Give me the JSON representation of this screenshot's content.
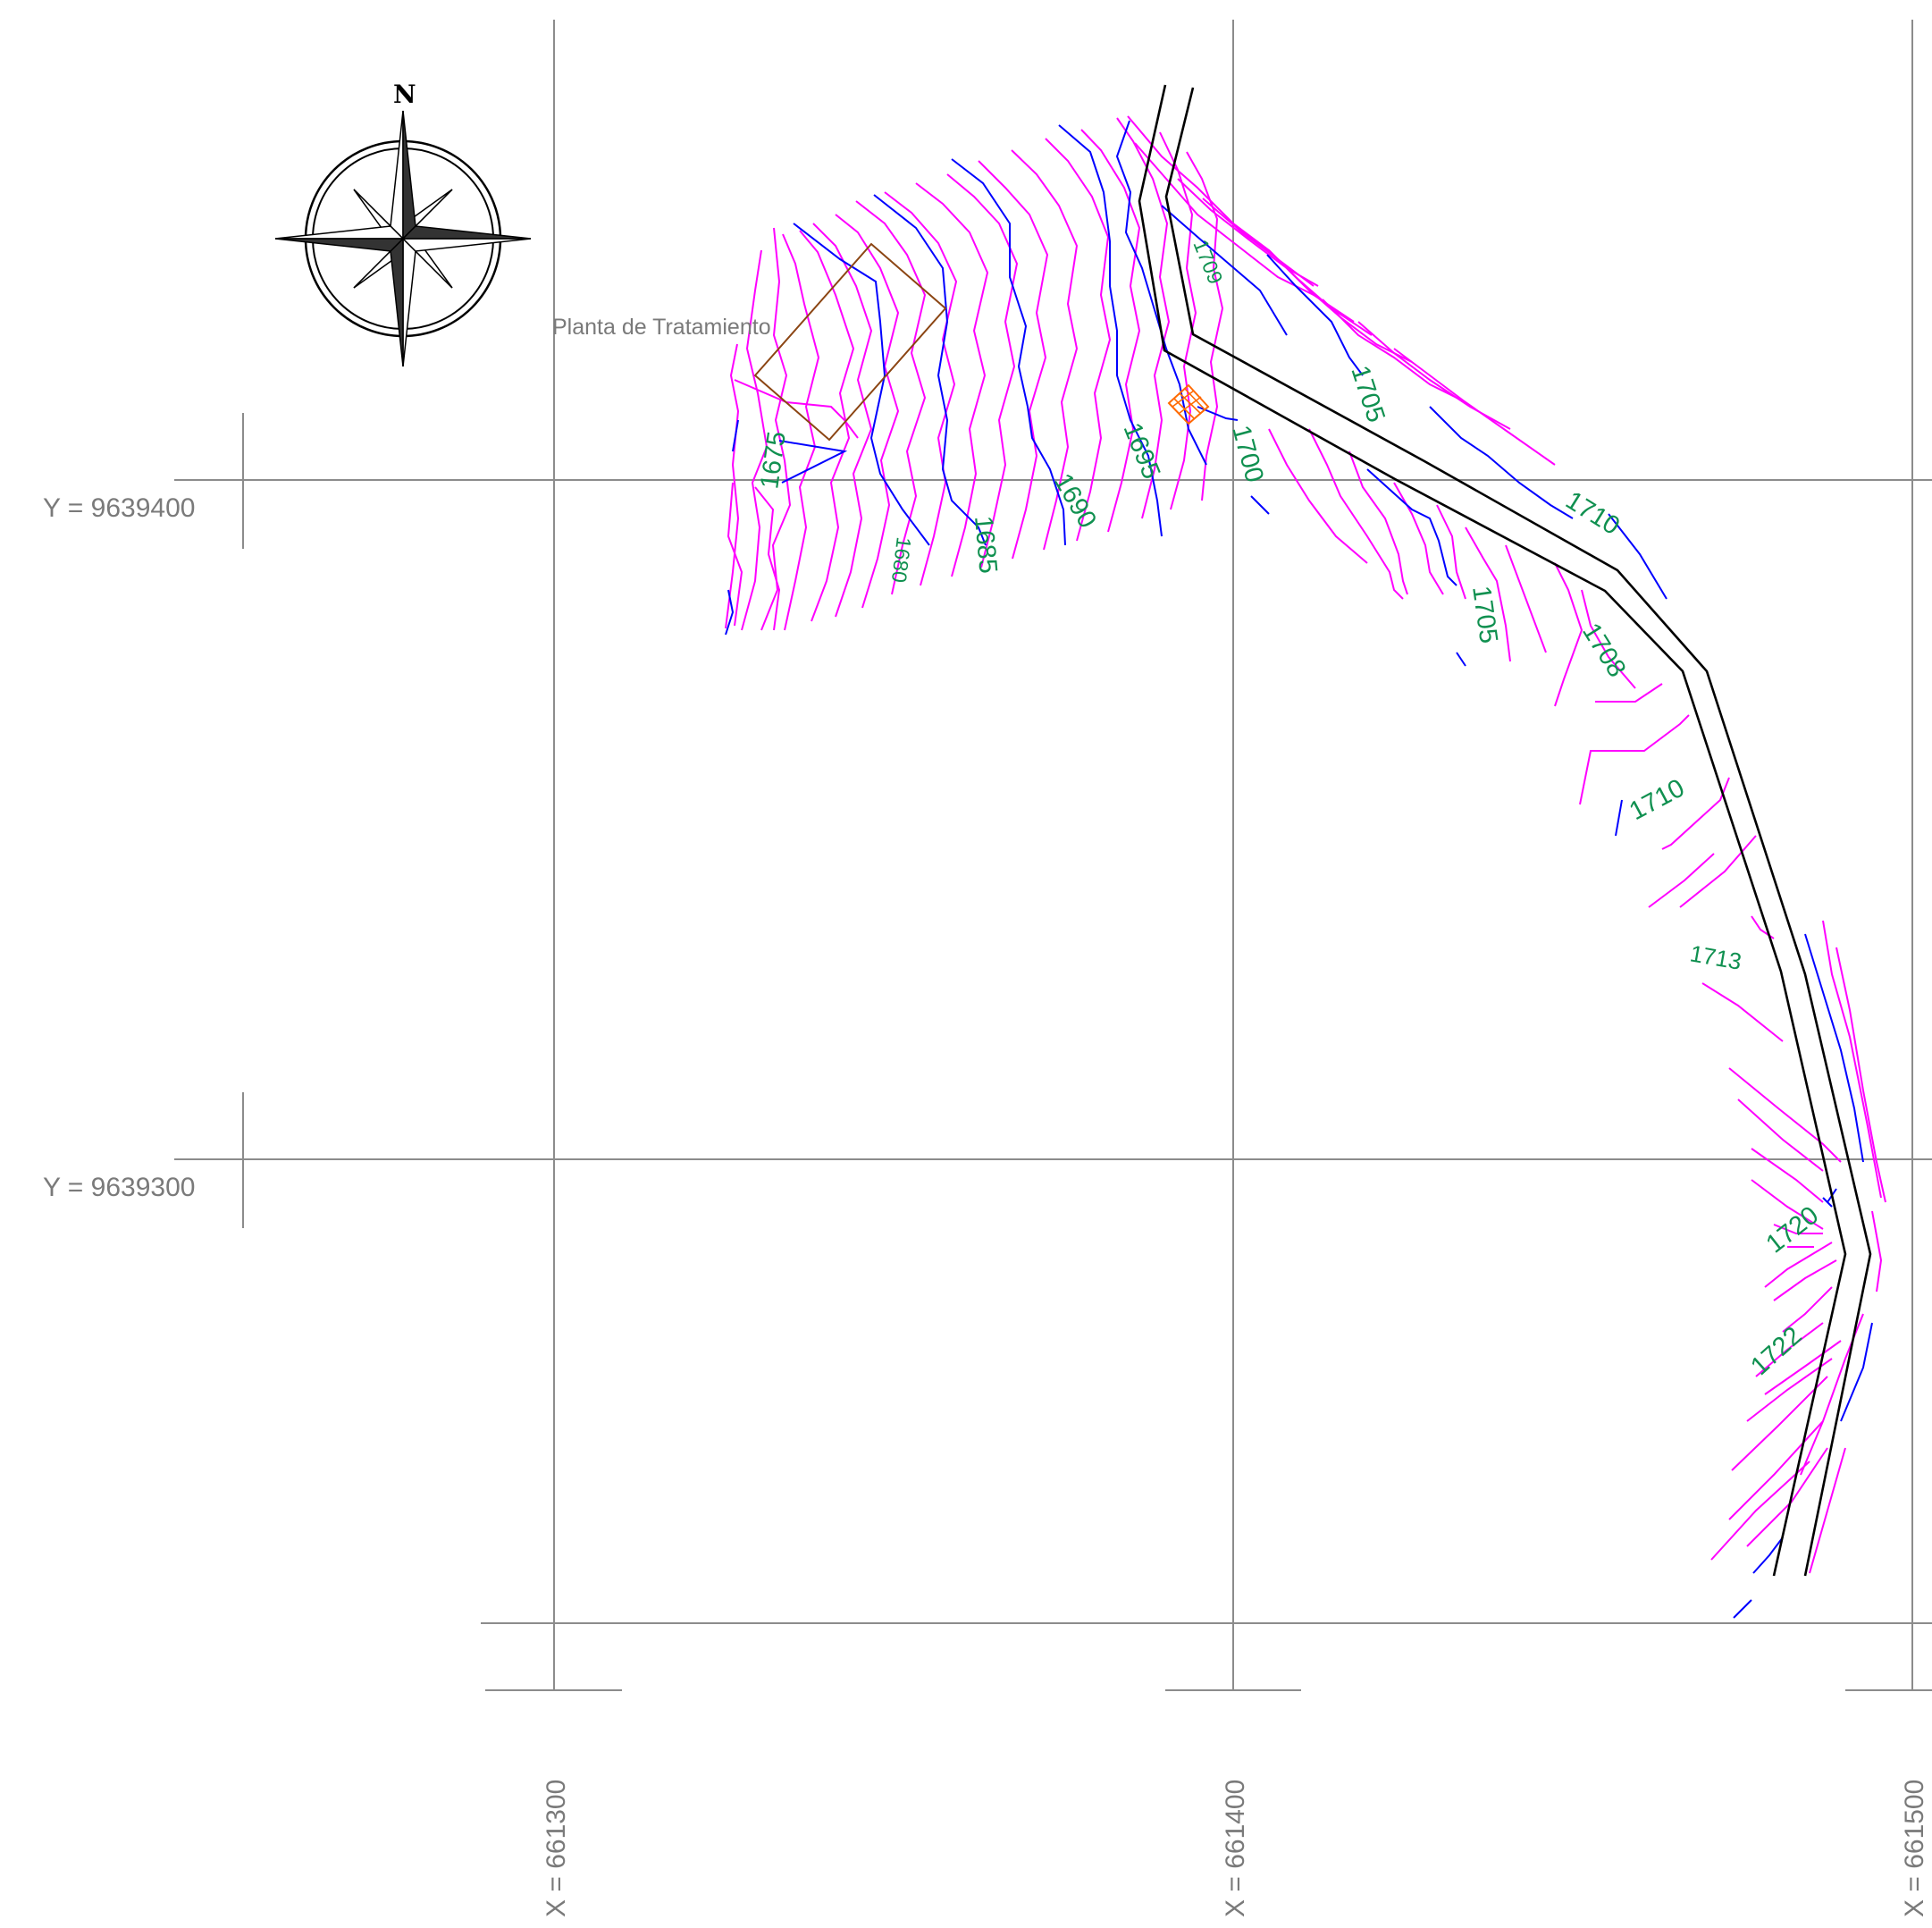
{
  "map": {
    "grid_x_labels": [
      "X = 661300",
      "X = 661400",
      "X = 661500"
    ],
    "grid_y_labels": [
      "Y = 9639400",
      "Y = 9639300"
    ],
    "north_label": "N",
    "plant_label": "Planta de Tratamiento",
    "contour_labels": [
      "1675",
      "1680",
      "1685",
      "1690",
      "1695",
      "1700",
      "1709",
      "1705",
      "1710",
      "1705",
      "1708",
      "1710",
      "1713",
      "1720",
      "1722"
    ],
    "colors": {
      "grid": "#8c8c8c",
      "contour_minor": "#ff00ff",
      "contour_major": "#0000ff",
      "contour_label": "#109050",
      "road": "#000000",
      "plant_outline": "#8b4513",
      "marker": "#ff6a00"
    },
    "icons": [
      "compass-rose-icon",
      "hatched-marker-icon"
    ]
  }
}
